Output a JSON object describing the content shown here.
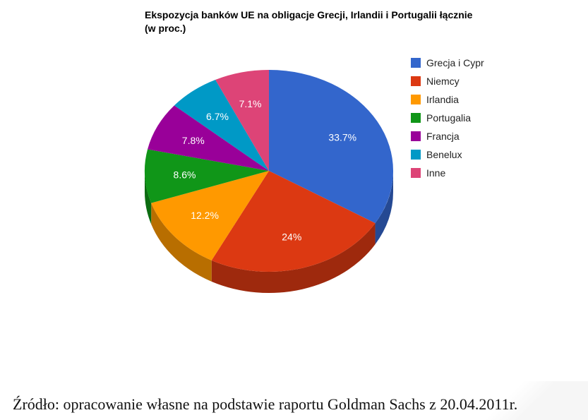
{
  "chart_data": {
    "type": "pie",
    "variant": "3d",
    "title": "Ekspozycja banków UE na obligacje Grecji, Irlandii i Portugalii łącznie (w proc.)",
    "categories": [
      "Grecja i Cypr",
      "Niemcy",
      "Irlandia",
      "Portugalia",
      "Francja",
      "Benelux",
      "Inne"
    ],
    "values": [
      33.7,
      24,
      12.2,
      8.6,
      7.8,
      6.7,
      7.1
    ],
    "labels": [
      "33.7%",
      "24%",
      "12.2%",
      "8.6%",
      "7.8%",
      "6.7%",
      "7.1%"
    ],
    "colors": [
      "#3366cc",
      "#dc3912",
      "#ff9900",
      "#109618",
      "#990099",
      "#0099c6",
      "#dd4477"
    ],
    "legend_position": "right"
  },
  "title": {
    "line1": "Ekspozycja banków UE na obligacje Grecji, Irlandii i Portugalii łącznie",
    "line2": "(w proc.)"
  },
  "legend": [
    {
      "label": "Grecja i Cypr",
      "color": "#3366cc"
    },
    {
      "label": "Niemcy",
      "color": "#dc3912"
    },
    {
      "label": "Irlandia",
      "color": "#ff9900"
    },
    {
      "label": "Portugalia",
      "color": "#109618"
    },
    {
      "label": "Francja",
      "color": "#990099"
    },
    {
      "label": "Benelux",
      "color": "#0099c6"
    },
    {
      "label": "Inne",
      "color": "#dd4477"
    }
  ],
  "source": "Źródło: opracowanie własne na podstawie raportu Goldman Sachs z 20.04.2011r."
}
